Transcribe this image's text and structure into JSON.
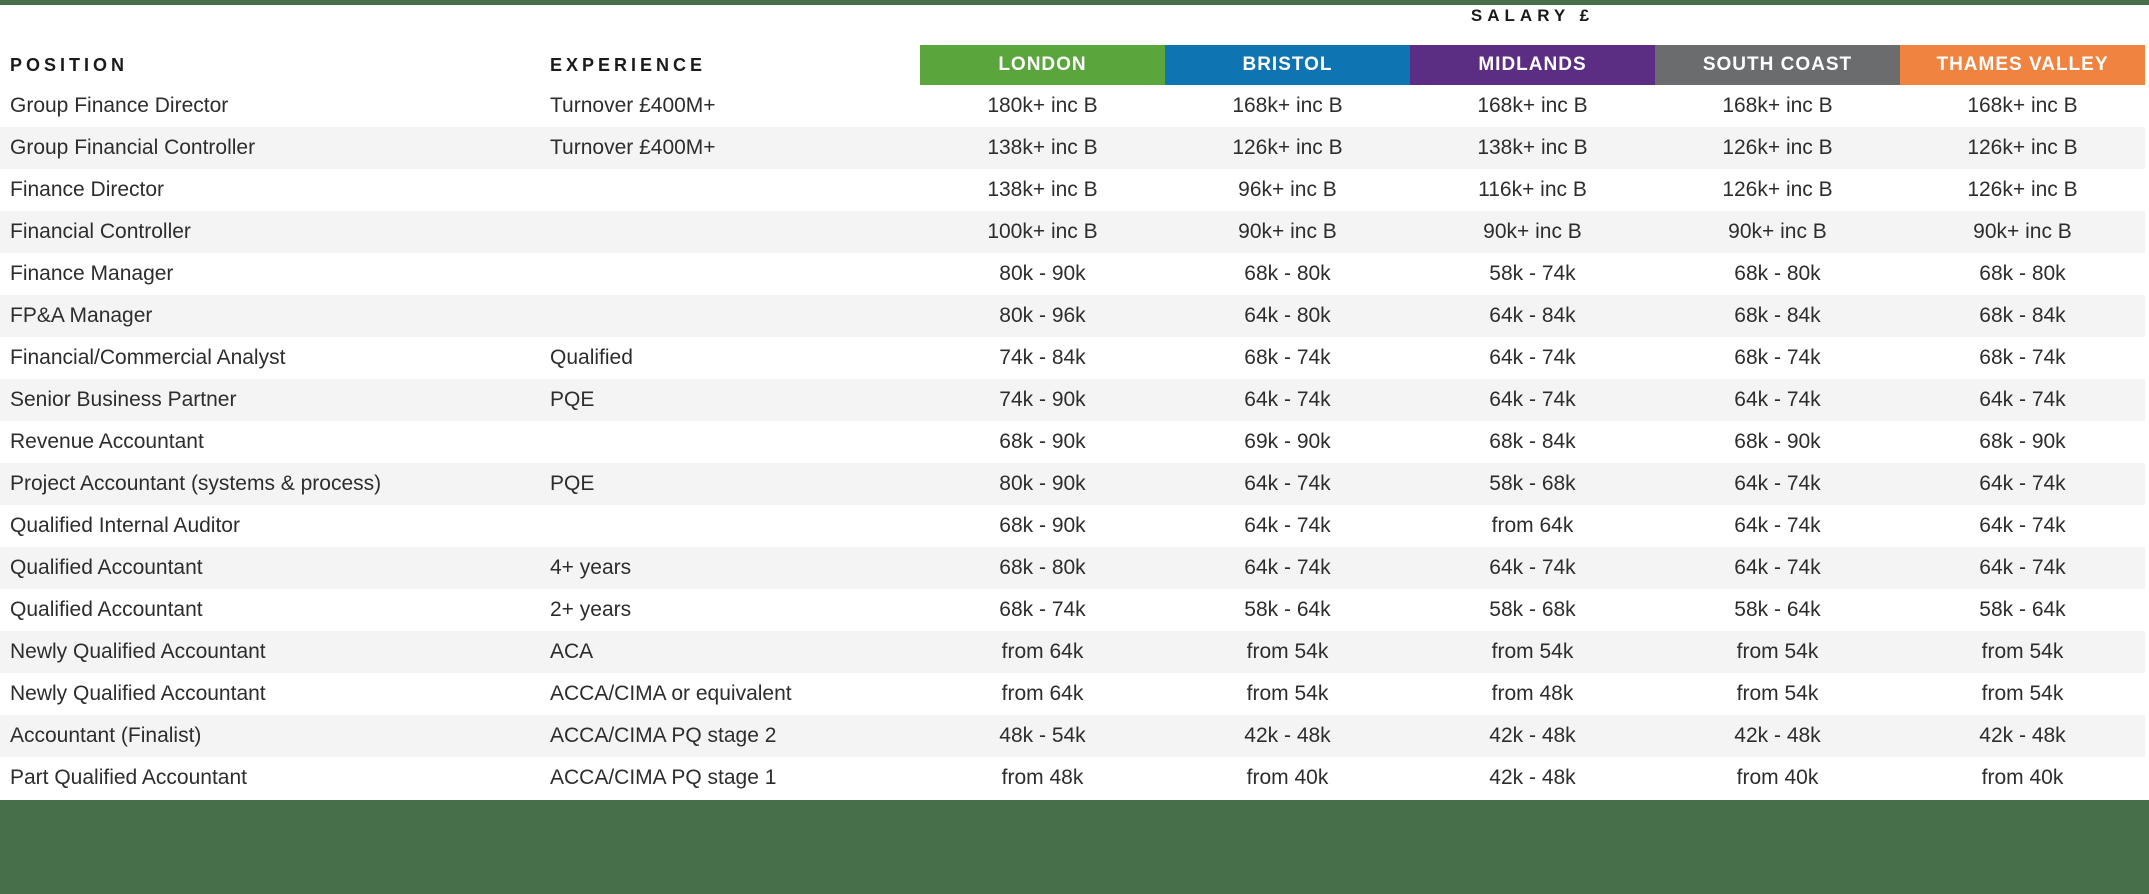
{
  "header": {
    "salary_label": "SALARY £",
    "position_label": "POSITION",
    "experience_label": "EXPERIENCE"
  },
  "colors": {
    "band_green": "#47704A",
    "stripe_gray": "#F4F4F4",
    "text": "#2D2D2D"
  },
  "regions": [
    {
      "label": "LONDON",
      "color": "#5BA53D"
    },
    {
      "label": "BRISTOL",
      "color": "#0E74B2"
    },
    {
      "label": "MIDLANDS",
      "color": "#5B2D83"
    },
    {
      "label": "SOUTH COAST",
      "color": "#6B6C6E"
    },
    {
      "label": "THAMES VALLEY",
      "color": "#F0833F"
    }
  ],
  "rows": [
    {
      "position": "Group Finance Director",
      "experience": "Turnover £400M+",
      "salaries": [
        "180k+ inc B",
        "168k+ inc B",
        "168k+ inc B",
        "168k+ inc B",
        "168k+ inc B"
      ]
    },
    {
      "position": "Group Financial Controller",
      "experience": "Turnover £400M+",
      "salaries": [
        "138k+ inc B",
        "126k+ inc B",
        "138k+ inc B",
        "126k+ inc B",
        "126k+ inc B"
      ]
    },
    {
      "position": "Finance Director",
      "experience": "",
      "salaries": [
        "138k+ inc B",
        "96k+ inc B",
        "116k+ inc B",
        "126k+ inc B",
        "126k+ inc B"
      ]
    },
    {
      "position": "Financial Controller",
      "experience": "",
      "salaries": [
        "100k+ inc B",
        "90k+ inc B",
        "90k+ inc B",
        "90k+ inc B",
        "90k+ inc B"
      ]
    },
    {
      "position": "Finance Manager",
      "experience": "",
      "salaries": [
        "80k - 90k",
        "68k - 80k",
        "58k - 74k",
        "68k - 80k",
        "68k - 80k"
      ]
    },
    {
      "position": "FP&A Manager",
      "experience": "",
      "salaries": [
        "80k - 96k",
        "64k - 80k",
        "64k - 84k",
        "68k - 84k",
        "68k - 84k"
      ]
    },
    {
      "position": "Financial/Commercial Analyst",
      "experience": "Qualified",
      "salaries": [
        "74k - 84k",
        "68k - 74k",
        "64k - 74k",
        "68k - 74k",
        "68k - 74k"
      ]
    },
    {
      "position": "Senior Business Partner",
      "experience": "PQE",
      "salaries": [
        "74k - 90k",
        "64k - 74k",
        "64k - 74k",
        "64k - 74k",
        "64k - 74k"
      ]
    },
    {
      "position": "Revenue Accountant",
      "experience": "",
      "salaries": [
        "68k - 90k",
        "69k - 90k",
        "68k - 84k",
        "68k - 90k",
        "68k - 90k"
      ]
    },
    {
      "position": "Project Accountant (systems & process)",
      "experience": "PQE",
      "salaries": [
        "80k - 90k",
        "64k - 74k",
        "58k - 68k",
        "64k - 74k",
        "64k - 74k"
      ]
    },
    {
      "position": "Qualified Internal Auditor",
      "experience": "",
      "salaries": [
        "68k - 90k",
        "64k - 74k",
        "from 64k",
        "64k - 74k",
        "64k - 74k"
      ]
    },
    {
      "position": "Qualified Accountant",
      "experience": "4+ years",
      "salaries": [
        "68k - 80k",
        "64k - 74k",
        "64k - 74k",
        "64k - 74k",
        "64k - 74k"
      ]
    },
    {
      "position": "Qualified Accountant",
      "experience": "2+ years",
      "salaries": [
        "68k - 74k",
        "58k - 64k",
        "58k - 68k",
        "58k - 64k",
        "58k - 64k"
      ]
    },
    {
      "position": "Newly Qualified Accountant",
      "experience": "ACA",
      "salaries": [
        "from 64k",
        "from 54k",
        "from 54k",
        "from 54k",
        "from 54k"
      ]
    },
    {
      "position": "Newly Qualified Accountant",
      "experience": "ACCA/CIMA or equivalent",
      "salaries": [
        "from 64k",
        "from 54k",
        "from 48k",
        "from 54k",
        "from 54k"
      ]
    },
    {
      "position": "Accountant (Finalist)",
      "experience": "ACCA/CIMA PQ stage 2",
      "salaries": [
        "48k - 54k",
        "42k - 48k",
        "42k - 48k",
        "42k - 48k",
        "42k - 48k"
      ]
    },
    {
      "position": "Part Qualified Accountant",
      "experience": "ACCA/CIMA PQ stage 1",
      "salaries": [
        "from 48k",
        "from 40k",
        "42k - 48k",
        "from 40k",
        "from 40k"
      ]
    }
  ]
}
